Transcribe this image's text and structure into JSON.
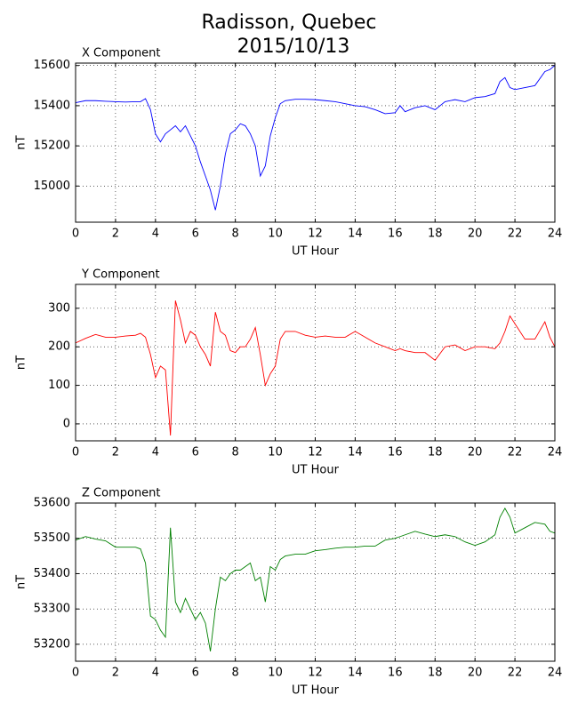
{
  "title": "Radisson, Quebec",
  "subtitle": "2015/10/13",
  "chart_data": [
    {
      "type": "line",
      "title": "X Component",
      "xlabel": "UT Hour",
      "ylabel": "nT",
      "color": "#0000ff",
      "x": [
        0,
        0.5,
        1,
        1.5,
        2,
        2.5,
        3,
        3.25,
        3.5,
        3.75,
        4,
        4.25,
        4.5,
        4.75,
        5,
        5.25,
        5.5,
        5.75,
        6,
        6.25,
        6.5,
        6.75,
        7,
        7.25,
        7.5,
        7.75,
        8,
        8.25,
        8.5,
        8.75,
        9,
        9.25,
        9.5,
        9.75,
        10,
        10.25,
        10.5,
        11,
        11.5,
        12,
        12.5,
        13,
        13.5,
        14,
        14.5,
        15,
        15.5,
        16,
        16.25,
        16.5,
        17,
        17.5,
        18,
        18.5,
        19,
        19.5,
        20,
        20.5,
        21,
        21.25,
        21.5,
        21.75,
        22,
        22.5,
        23,
        23.5,
        23.75,
        24
      ],
      "values": [
        15415,
        15425,
        15425,
        15422,
        15420,
        15418,
        15420,
        15420,
        15435,
        15380,
        15260,
        15220,
        15260,
        15280,
        15300,
        15270,
        15300,
        15250,
        15200,
        15120,
        15050,
        14980,
        14880,
        15000,
        15160,
        15260,
        15280,
        15310,
        15300,
        15260,
        15200,
        15050,
        15100,
        15250,
        15340,
        15410,
        15425,
        15432,
        15432,
        15430,
        15425,
        15420,
        15410,
        15400,
        15395,
        15380,
        15360,
        15365,
        15400,
        15370,
        15390,
        15400,
        15380,
        15420,
        15430,
        15420,
        15440,
        15445,
        15460,
        15520,
        15540,
        15490,
        15480,
        15490,
        15500,
        15570,
        15580,
        15600
      ],
      "xlim": [
        0,
        24
      ],
      "xticks": [
        0,
        2,
        4,
        6,
        8,
        10,
        12,
        14,
        16,
        18,
        20,
        22,
        24
      ],
      "ylim": [
        14820,
        15612
      ],
      "yticks": [
        15000,
        15200,
        15400,
        15600
      ],
      "grid": true
    },
    {
      "type": "line",
      "title": "Y Component",
      "xlabel": "UT Hour",
      "ylabel": "nT",
      "color": "#ff0000",
      "x": [
        0,
        0.5,
        1,
        1.5,
        2,
        2.5,
        3,
        3.25,
        3.5,
        3.75,
        4,
        4.25,
        4.5,
        4.75,
        5,
        5.25,
        5.5,
        5.75,
        6,
        6.25,
        6.5,
        6.75,
        7,
        7.25,
        7.5,
        7.75,
        8,
        8.25,
        8.5,
        8.75,
        9,
        9.25,
        9.5,
        9.75,
        10,
        10.25,
        10.5,
        11,
        11.5,
        12,
        12.5,
        13,
        13.5,
        14,
        14.5,
        15,
        15.5,
        16,
        16.25,
        16.5,
        17,
        17.5,
        18,
        18.5,
        19,
        19.5,
        20,
        20.5,
        21,
        21.25,
        21.5,
        21.75,
        22,
        22.5,
        23,
        23.5,
        23.75,
        24
      ],
      "values": [
        210,
        222,
        232,
        225,
        225,
        228,
        230,
        235,
        225,
        180,
        120,
        150,
        140,
        -30,
        320,
        270,
        210,
        240,
        230,
        200,
        180,
        150,
        290,
        240,
        230,
        190,
        185,
        200,
        200,
        220,
        250,
        180,
        100,
        130,
        150,
        220,
        240,
        240,
        230,
        225,
        228,
        225,
        225,
        240,
        225,
        210,
        200,
        190,
        195,
        190,
        185,
        185,
        165,
        200,
        205,
        190,
        200,
        200,
        195,
        210,
        240,
        280,
        260,
        220,
        220,
        265,
        225,
        200
      ],
      "xlim": [
        0,
        24
      ],
      "xticks": [
        0,
        2,
        4,
        6,
        8,
        10,
        12,
        14,
        16,
        18,
        20,
        22,
        24
      ],
      "ylim": [
        -44,
        362
      ],
      "yticks": [
        0,
        100,
        200,
        300
      ],
      "grid": true
    },
    {
      "type": "line",
      "title": "Z Component",
      "xlabel": "UT Hour",
      "ylabel": "nT",
      "color": "#008000",
      "x": [
        0,
        0.5,
        1,
        1.5,
        2,
        2.5,
        3,
        3.25,
        3.5,
        3.75,
        4,
        4.25,
        4.5,
        4.75,
        5,
        5.25,
        5.5,
        5.75,
        6,
        6.25,
        6.5,
        6.75,
        7,
        7.25,
        7.5,
        7.75,
        8,
        8.25,
        8.5,
        8.75,
        9,
        9.25,
        9.5,
        9.75,
        10,
        10.25,
        10.5,
        11,
        11.5,
        12,
        12.5,
        13,
        13.5,
        14,
        14.5,
        15,
        15.5,
        16,
        16.25,
        16.5,
        17,
        17.5,
        18,
        18.5,
        19,
        19.5,
        20,
        20.5,
        21,
        21.25,
        21.5,
        21.75,
        22,
        22.5,
        23,
        23.5,
        23.75,
        24
      ],
      "values": [
        53495,
        53505,
        53498,
        53493,
        53475,
        53475,
        53475,
        53470,
        53430,
        53280,
        53270,
        53240,
        53220,
        53530,
        53320,
        53290,
        53330,
        53300,
        53270,
        53290,
        53260,
        53180,
        53300,
        53390,
        53380,
        53400,
        53410,
        53410,
        53420,
        53430,
        53380,
        53390,
        53320,
        53420,
        53410,
        53440,
        53450,
        53455,
        53455,
        53465,
        53468,
        53472,
        53475,
        53475,
        53478,
        53478,
        53495,
        53500,
        53505,
        53510,
        53520,
        53512,
        53505,
        53510,
        53505,
        53490,
        53480,
        53490,
        53510,
        53560,
        53585,
        53560,
        53515,
        53530,
        53545,
        53540,
        53520,
        53515
      ],
      "xlim": [
        0,
        24
      ],
      "xticks": [
        0,
        2,
        4,
        6,
        8,
        10,
        12,
        14,
        16,
        18,
        20,
        22,
        24
      ],
      "ylim": [
        53152,
        53600
      ],
      "yticks": [
        53200,
        53300,
        53400,
        53500,
        53600
      ],
      "grid": true
    }
  ]
}
